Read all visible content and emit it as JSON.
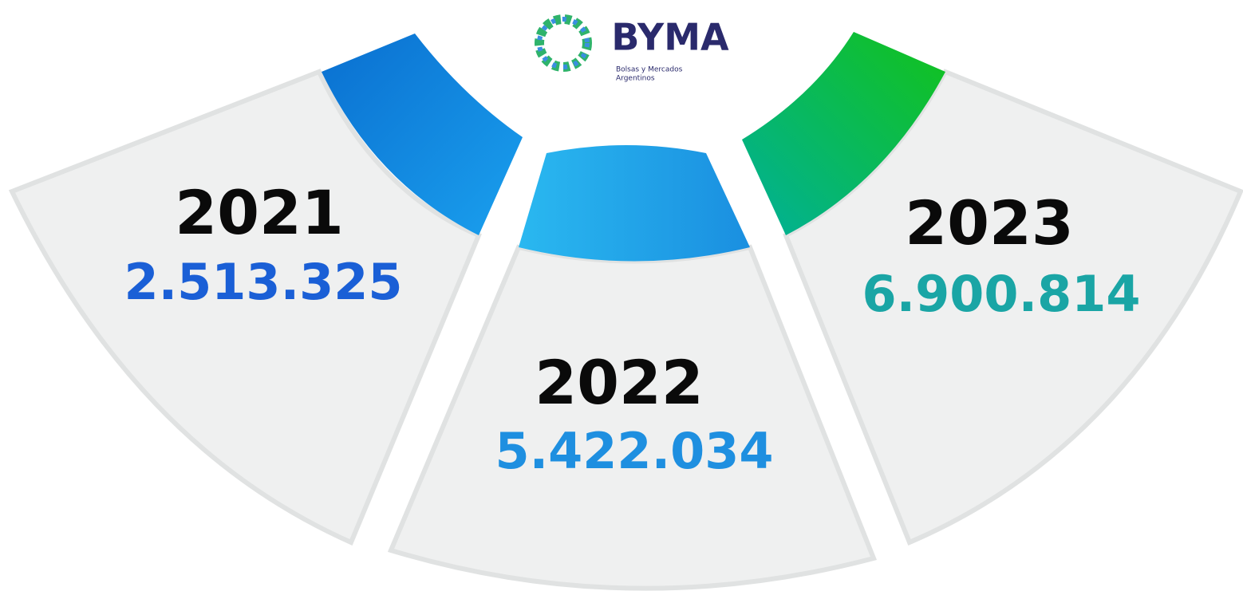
{
  "logo": {
    "name": "BYMA",
    "tagline": [
      "Bolsas y Mercados",
      "Argentinos"
    ]
  },
  "segments": [
    {
      "year": "2021",
      "value": "2.513.325"
    },
    {
      "year": "2022",
      "value": "5.422.034"
    },
    {
      "year": "2023",
      "value": "6.900.814"
    }
  ]
}
